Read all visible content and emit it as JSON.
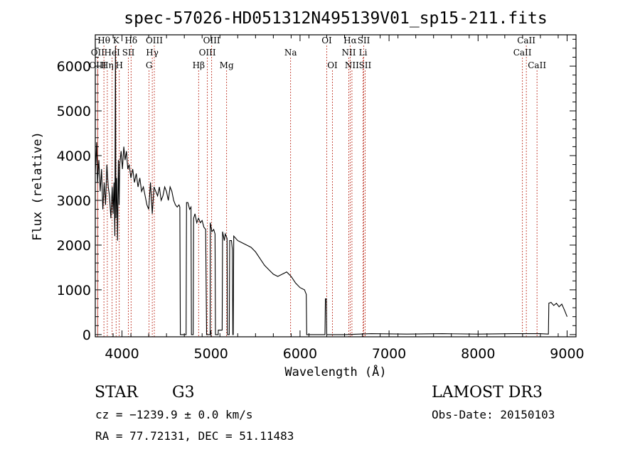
{
  "title": "spec-57026-HD051312N495139V01_sp15-211.fits",
  "xlabel": "Wavelength (Å)",
  "ylabel": "Flux (relative)",
  "info": {
    "class": "STAR",
    "subclass": "G3",
    "survey": "LAMOST DR3",
    "cz": "cz = −1239.9 ± 0.0 km/s",
    "obs_date": "Obs-Date: 20150103",
    "coords": "RA =  77.72131, DEC =  51.11483"
  },
  "colors": {
    "spectrum": "#000000",
    "line_marker": "#c0392b",
    "frame": "#000000"
  },
  "chart_data": {
    "type": "line",
    "title": "spec-57026-HD051312N495139V01_sp15-211.fits",
    "xlabel": "Wavelength (Å)",
    "ylabel": "Flux (relative)",
    "xlim": [
      3700,
      9100
    ],
    "ylim": [
      -50,
      6700
    ],
    "x_ticks": [
      4000,
      5000,
      6000,
      7000,
      8000,
      9000
    ],
    "y_ticks": [
      0,
      1000,
      2000,
      3000,
      4000,
      5000,
      6000
    ],
    "grid": false,
    "series": [
      {
        "points": [
          [
            3700,
            3600
          ],
          [
            3715,
            4300
          ],
          [
            3725,
            3400
          ],
          [
            3740,
            3900
          ],
          [
            3755,
            3200
          ],
          [
            3770,
            3700
          ],
          [
            3785,
            2800
          ],
          [
            3800,
            3400
          ],
          [
            3815,
            2900
          ],
          [
            3830,
            3800
          ],
          [
            3845,
            3300
          ],
          [
            3860,
            3100
          ],
          [
            3875,
            2600
          ],
          [
            3890,
            3300
          ],
          [
            3900,
            2700
          ],
          [
            3910,
            3400
          ],
          [
            3920,
            2200
          ],
          [
            3926,
            6450
          ],
          [
            3932,
            2600
          ],
          [
            3940,
            3500
          ],
          [
            3950,
            2100
          ],
          [
            3960,
            3900
          ],
          [
            3968,
            2900
          ],
          [
            3975,
            3800
          ],
          [
            3990,
            4100
          ],
          [
            4005,
            3700
          ],
          [
            4020,
            4200
          ],
          [
            4035,
            3900
          ],
          [
            4050,
            4100
          ],
          [
            4065,
            3700
          ],
          [
            4080,
            3800
          ],
          [
            4100,
            3500
          ],
          [
            4120,
            3700
          ],
          [
            4140,
            3400
          ],
          [
            4160,
            3600
          ],
          [
            4180,
            3300
          ],
          [
            4200,
            3500
          ],
          [
            4220,
            3200
          ],
          [
            4240,
            3300
          ],
          [
            4260,
            3100
          ],
          [
            4280,
            2900
          ],
          [
            4300,
            2800
          ],
          [
            4320,
            3400
          ],
          [
            4340,
            2700
          ],
          [
            4360,
            3300
          ],
          [
            4380,
            3200
          ],
          [
            4400,
            3100
          ],
          [
            4420,
            3300
          ],
          [
            4440,
            3000
          ],
          [
            4460,
            3100
          ],
          [
            4480,
            3300
          ],
          [
            4500,
            3200
          ],
          [
            4520,
            3000
          ],
          [
            4540,
            3300
          ],
          [
            4560,
            3200
          ],
          [
            4580,
            3000
          ],
          [
            4600,
            2900
          ],
          [
            4620,
            2850
          ],
          [
            4640,
            2900
          ],
          [
            4650,
            2850
          ],
          [
            4655,
            0
          ],
          [
            4720,
            0
          ],
          [
            4725,
            2950
          ],
          [
            4740,
            2950
          ],
          [
            4760,
            2800
          ],
          [
            4775,
            2850
          ],
          [
            4780,
            0
          ],
          [
            4800,
            0
          ],
          [
            4805,
            2600
          ],
          [
            4820,
            2700
          ],
          [
            4840,
            2500
          ],
          [
            4860,
            2600
          ],
          [
            4880,
            2500
          ],
          [
            4900,
            2550
          ],
          [
            4920,
            2400
          ],
          [
            4940,
            2350
          ],
          [
            4950,
            0
          ],
          [
            4990,
            0
          ],
          [
            4992,
            2500
          ],
          [
            5010,
            2300
          ],
          [
            5030,
            2350
          ],
          [
            5045,
            2250
          ],
          [
            5050,
            0
          ],
          [
            5080,
            0
          ],
          [
            5082,
            100
          ],
          [
            5125,
            100
          ],
          [
            5130,
            2300
          ],
          [
            5150,
            2100
          ],
          [
            5160,
            2250
          ],
          [
            5180,
            2150
          ],
          [
            5185,
            0
          ],
          [
            5205,
            0
          ],
          [
            5210,
            2100
          ],
          [
            5230,
            2100
          ],
          [
            5240,
            1900
          ],
          [
            5245,
            0
          ],
          [
            5250,
            0
          ],
          [
            5255,
            2200
          ],
          [
            5300,
            2100
          ],
          [
            5350,
            2050
          ],
          [
            5400,
            2000
          ],
          [
            5450,
            1950
          ],
          [
            5500,
            1850
          ],
          [
            5550,
            1700
          ],
          [
            5600,
            1550
          ],
          [
            5650,
            1450
          ],
          [
            5700,
            1350
          ],
          [
            5750,
            1300
          ],
          [
            5800,
            1350
          ],
          [
            5850,
            1400
          ],
          [
            5900,
            1300
          ],
          [
            5950,
            1150
          ],
          [
            6000,
            1050
          ],
          [
            6050,
            1000
          ],
          [
            6070,
            900
          ],
          [
            6075,
            0
          ],
          [
            6280,
            0
          ],
          [
            6285,
            800
          ],
          [
            6295,
            800
          ],
          [
            6300,
            0
          ],
          [
            6500,
            0
          ],
          [
            6800,
            20
          ],
          [
            7200,
            10
          ],
          [
            7600,
            20
          ],
          [
            8000,
            10
          ],
          [
            8400,
            20
          ],
          [
            8700,
            20
          ],
          [
            8790,
            10
          ],
          [
            8795,
            700
          ],
          [
            8820,
            720
          ],
          [
            8850,
            650
          ],
          [
            8880,
            700
          ],
          [
            8910,
            620
          ],
          [
            8940,
            680
          ],
          [
            8970,
            550
          ],
          [
            9000,
            400
          ]
        ]
      }
    ],
    "spectral_lines": [
      {
        "label": "Hθ",
        "wl": 3797,
        "row": 1
      },
      {
        "label": "OII",
        "wl": 3727,
        "row": 2
      },
      {
        "label": "OIII",
        "wl": 3727,
        "row": 3
      },
      {
        "label": "K",
        "wl": 3934,
        "row": 1
      },
      {
        "label": "HeI",
        "wl": 3889,
        "row": 2
      },
      {
        "label": "Hη",
        "wl": 3835,
        "row": 3
      },
      {
        "label": "H",
        "wl": 3969,
        "row": 3
      },
      {
        "label": "Hδ",
        "wl": 4102,
        "row": 1
      },
      {
        "label": "SII",
        "wl": 4072,
        "row": 2
      },
      {
        "label": "OIII",
        "wl": 4363,
        "row": 1
      },
      {
        "label": "Hγ",
        "wl": 4340,
        "row": 2
      },
      {
        "label": "G",
        "wl": 4304,
        "row": 3
      },
      {
        "label": "Hβ",
        "wl": 4861,
        "row": 3
      },
      {
        "label": "OIII",
        "wl": 5007,
        "row": 1
      },
      {
        "label": "OIII",
        "wl": 4959,
        "row": 2
      },
      {
        "label": "Mg",
        "wl": 5175,
        "row": 3
      },
      {
        "label": "Na",
        "wl": 5894,
        "row": 2
      },
      {
        "label": "OI",
        "wl": 6300,
        "row": 1
      },
      {
        "label": "OI",
        "wl": 6364,
        "row": 3
      },
      {
        "label": "Hα",
        "wl": 6563,
        "row": 1
      },
      {
        "label": "NII",
        "wl": 6548,
        "row": 2
      },
      {
        "label": "NII",
        "wl": 6583,
        "row": 3
      },
      {
        "label": "SII",
        "wl": 6716,
        "row": 1
      },
      {
        "label": "Li",
        "wl": 6708,
        "row": 2
      },
      {
        "label": "SII",
        "wl": 6731,
        "row": 3
      },
      {
        "label": "CaII",
        "wl": 8542,
        "row": 1
      },
      {
        "label": "CaII",
        "wl": 8498,
        "row": 2
      },
      {
        "label": "CaII",
        "wl": 8662,
        "row": 3
      }
    ]
  }
}
